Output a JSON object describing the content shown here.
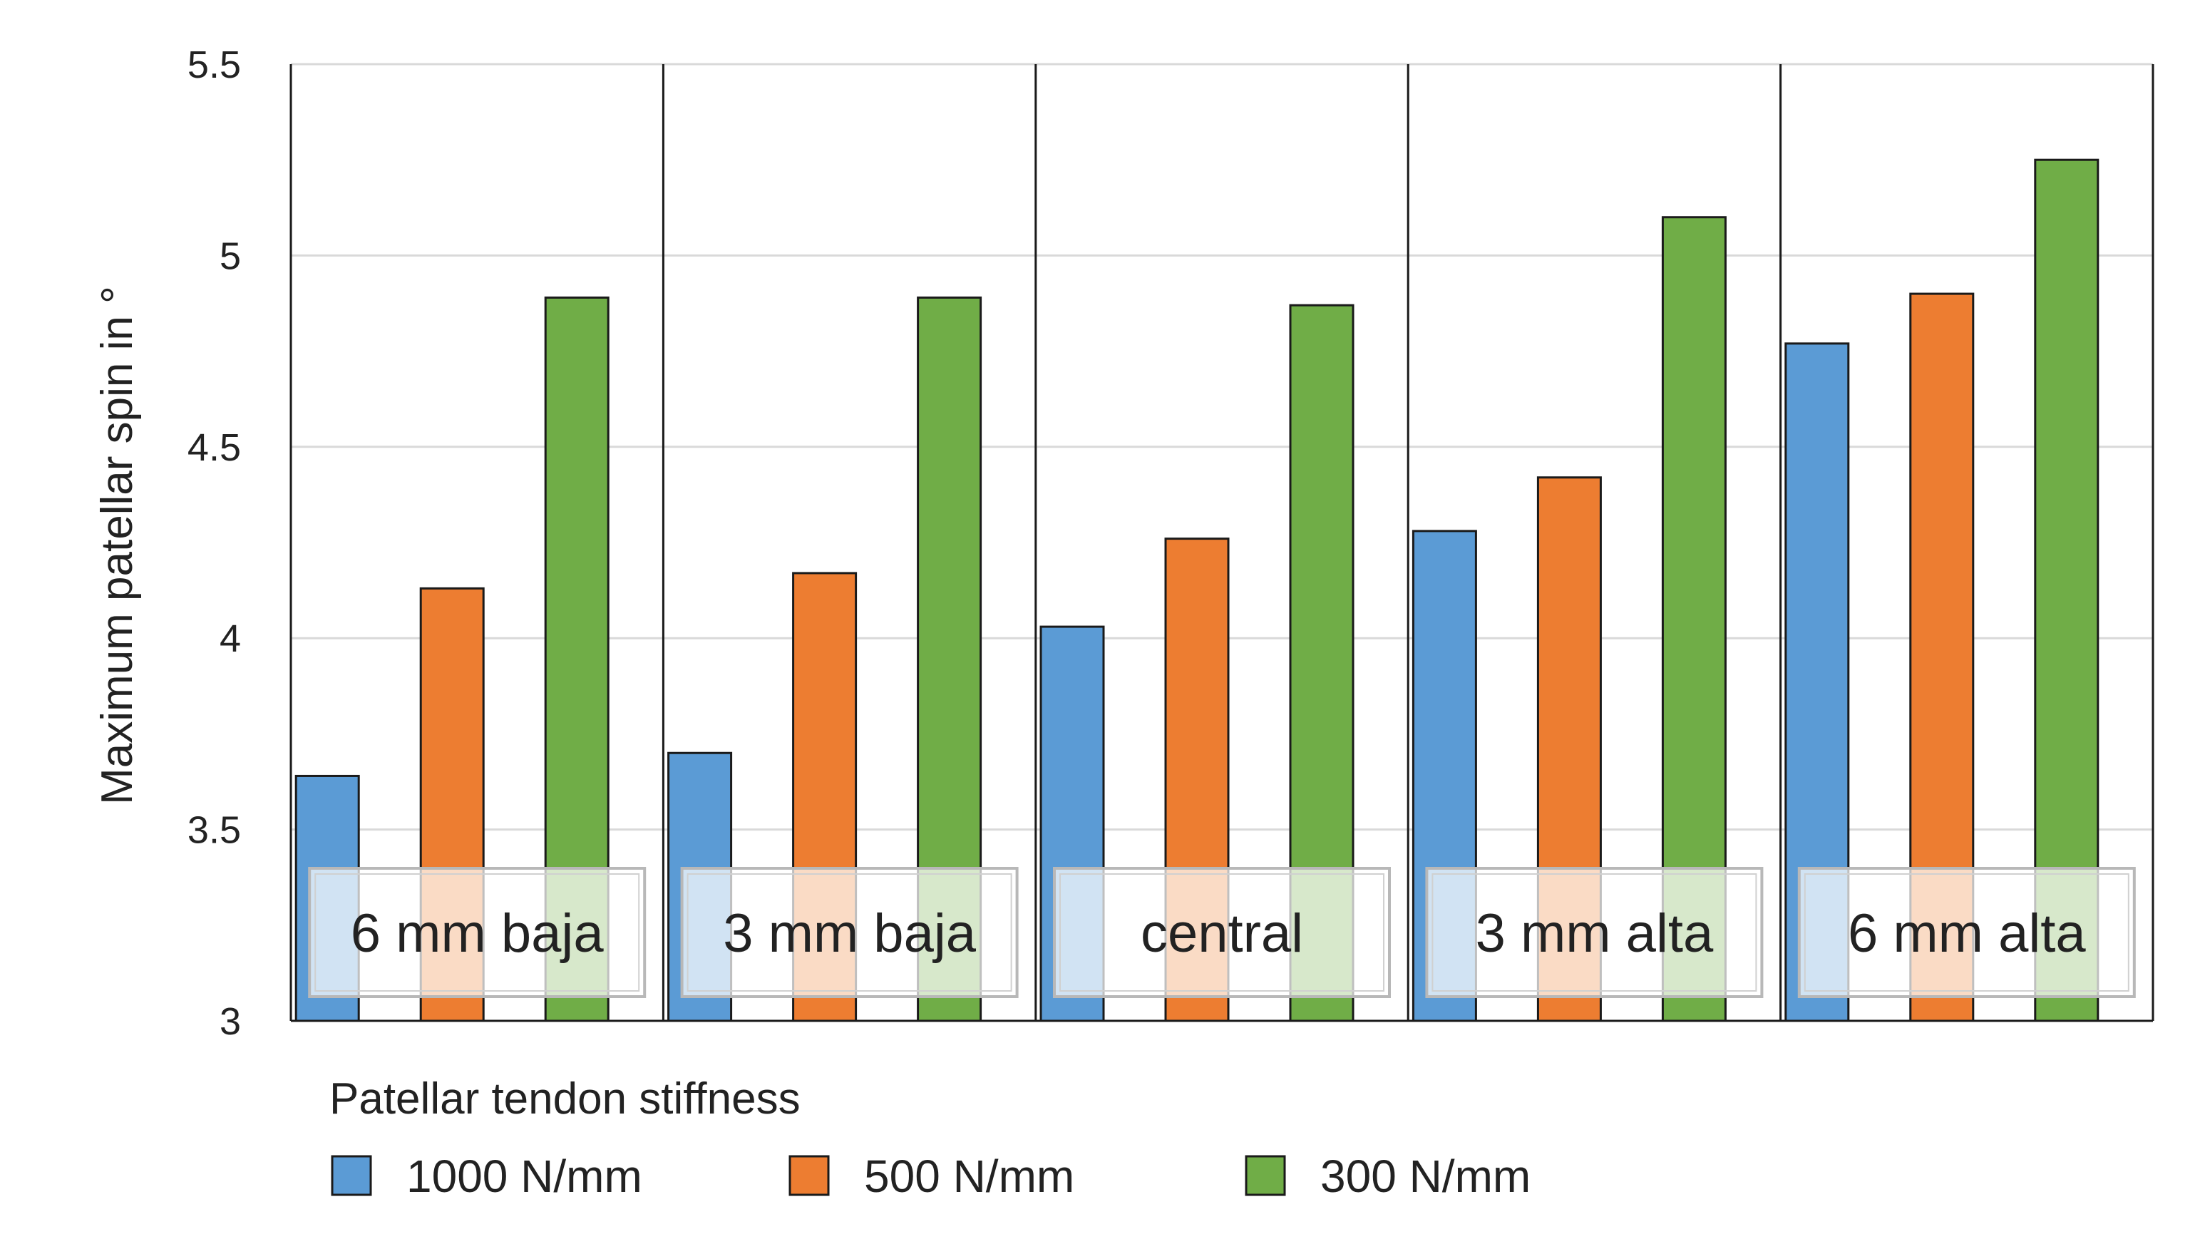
{
  "chart_data": {
    "type": "bar",
    "title": "",
    "xlabel": "",
    "ylabel": "Maximum patellar spin in °",
    "ylim": [
      3,
      5.5
    ],
    "yticks": [
      "3",
      "3.5",
      "4",
      "4.5",
      "5",
      "5.5"
    ],
    "grid": true,
    "categories": [
      "6 mm baja",
      "3 mm baja",
      "central",
      "3 mm alta",
      "6 mm alta"
    ],
    "series": [
      {
        "name": "1000 N/mm",
        "color": "#5b9bd5",
        "values": [
          3.64,
          3.7,
          4.03,
          4.28,
          4.77
        ]
      },
      {
        "name": "500 N/mm",
        "color": "#ed7d31",
        "values": [
          4.13,
          4.17,
          4.26,
          4.42,
          4.9
        ]
      },
      {
        "name": "300 N/mm",
        "color": "#70ad47",
        "values": [
          4.89,
          4.89,
          4.87,
          5.1,
          5.25
        ]
      }
    ],
    "legend_title": "Patellar tendon stiffness",
    "legend_position": "bottom-left"
  }
}
